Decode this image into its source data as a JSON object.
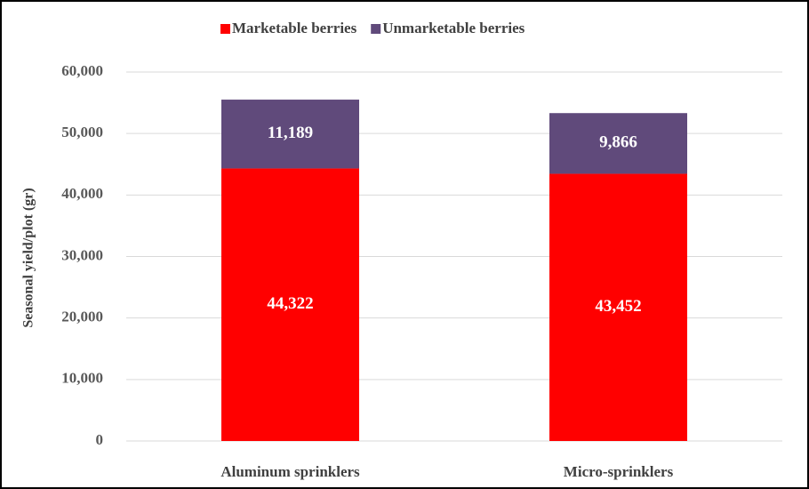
{
  "chart_data": {
    "type": "stacked_bar",
    "categories": [
      "Aluminum sprinklers",
      "Micro-sprinklers"
    ],
    "series": [
      {
        "name": "Marketable berries",
        "color": "#ff0000",
        "values": [
          44322,
          43452
        ],
        "value_labels": [
          "44,322",
          "43,452"
        ]
      },
      {
        "name": "Unmarketable berries",
        "color": "#604a7b",
        "values": [
          11189,
          9866
        ],
        "value_labels": [
          "11,189",
          "9,866"
        ]
      }
    ],
    "y_label": "Seasonal yield/plot (gr)",
    "ylim": [
      0,
      60000
    ],
    "yticks": [
      0,
      {
        "value": 10000,
        "label": "10,000"
      },
      {
        "value": 20000,
        "label": "20,000"
      },
      {
        "value": 30000,
        "label": "30,000"
      },
      {
        "value": 40000,
        "label": "40,000"
      },
      {
        "value": 50000,
        "label": "50,000"
      },
      {
        "value": 60000,
        "label": "60,000"
      }
    ],
    "grid": true,
    "legend": "top"
  }
}
